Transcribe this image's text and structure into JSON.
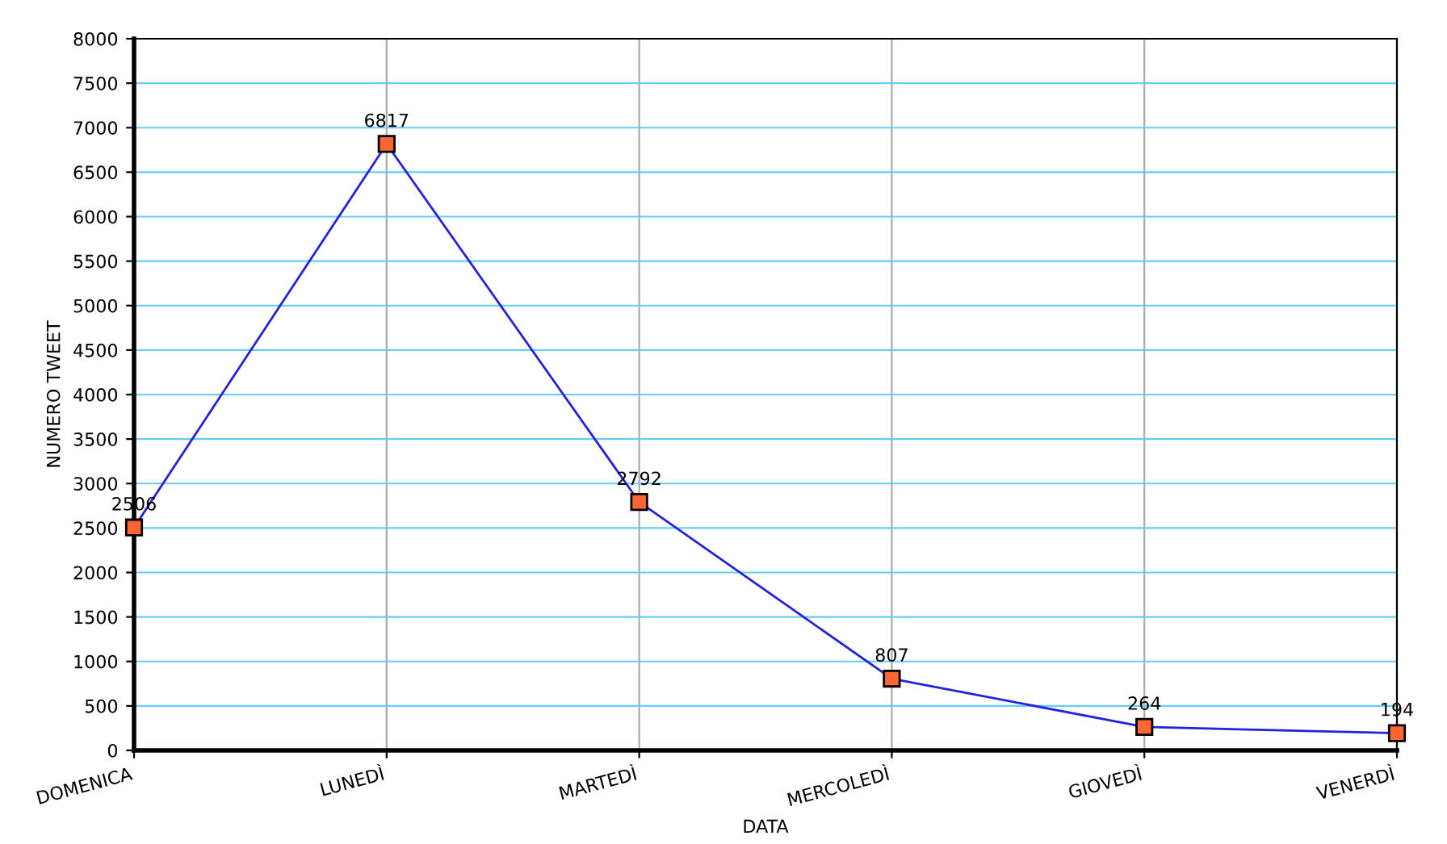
{
  "chart_data": {
    "type": "line",
    "xlabel": "DATA",
    "ylabel": "NUMERO TWEET",
    "categories": [
      "DOMENICA",
      "LUNEDÌ",
      "MARTEDÌ",
      "MERCOLEDÌ",
      "GIOVEDÌ",
      "VENERDÌ"
    ],
    "series": [
      {
        "color": "#2222dd",
        "values": [
          2506,
          6817,
          2792,
          807,
          264,
          194
        ]
      }
    ],
    "ylim": [
      0,
      8000
    ],
    "yticks": [
      0,
      500,
      1000,
      1500,
      2000,
      2500,
      3000,
      3500,
      4000,
      4500,
      5000,
      5500,
      6000,
      6500,
      7000,
      7500,
      8000
    ],
    "grid": true,
    "marker": "square",
    "line_style": "solid",
    "data_labels": true
  }
}
